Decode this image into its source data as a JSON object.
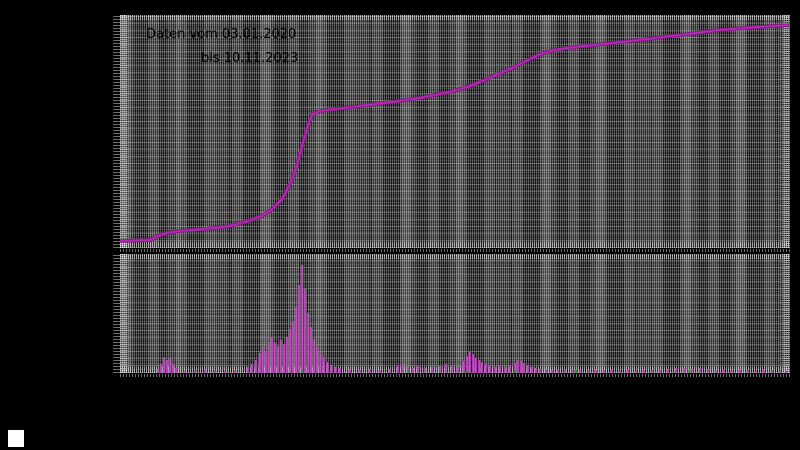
{
  "titles": {
    "line1": "Daten vom 03.01.2020",
    "line2": "bis 10.11.2023"
  },
  "colors": {
    "background": "#000000",
    "grid_gray": "#555555",
    "line_outer": "#8e158e",
    "line_inner": "#b32db3",
    "bar_fill": "#a82ca8",
    "bar_edge": "#c95fc9",
    "accent_green": "#3c8a3c",
    "title_text": "#000000",
    "legend_swatch": "#ffffff"
  },
  "chart_data": [
    {
      "type": "line",
      "title": "Daten vom 03.01.2020 bis 10.11.2023",
      "x_range": [
        "03.01.2020",
        "10.11.2023"
      ],
      "ylabel": "",
      "xlabel": "",
      "grid": true,
      "axis_tick_labels_visible": false,
      "points_normalized": [
        [
          0.0,
          0.03
        ],
        [
          0.045,
          0.034
        ],
        [
          0.057,
          0.052
        ],
        [
          0.069,
          0.064
        ],
        [
          0.09,
          0.073
        ],
        [
          0.127,
          0.082
        ],
        [
          0.164,
          0.094
        ],
        [
          0.191,
          0.116
        ],
        [
          0.212,
          0.137
        ],
        [
          0.227,
          0.167
        ],
        [
          0.242,
          0.21
        ],
        [
          0.254,
          0.275
        ],
        [
          0.263,
          0.343
        ],
        [
          0.272,
          0.438
        ],
        [
          0.281,
          0.532
        ],
        [
          0.288,
          0.575
        ],
        [
          0.299,
          0.588
        ],
        [
          0.336,
          0.601
        ],
        [
          0.381,
          0.618
        ],
        [
          0.418,
          0.631
        ],
        [
          0.455,
          0.648
        ],
        [
          0.493,
          0.67
        ],
        [
          0.522,
          0.695
        ],
        [
          0.552,
          0.73
        ],
        [
          0.582,
          0.768
        ],
        [
          0.612,
          0.811
        ],
        [
          0.631,
          0.837
        ],
        [
          0.649,
          0.85
        ],
        [
          0.679,
          0.863
        ],
        [
          0.724,
          0.876
        ],
        [
          0.776,
          0.893
        ],
        [
          0.836,
          0.914
        ],
        [
          0.896,
          0.936
        ],
        [
          0.955,
          0.949
        ],
        [
          1.0,
          0.957
        ]
      ]
    },
    {
      "type": "bar",
      "title": "",
      "grid": true,
      "axis_tick_labels_visible": false,
      "bars_normalized": [
        [
          0.057,
          0.034
        ],
        [
          0.061,
          0.076
        ],
        [
          0.066,
          0.134
        ],
        [
          0.07,
          0.109
        ],
        [
          0.075,
          0.126
        ],
        [
          0.079,
          0.076
        ],
        [
          0.084,
          0.042
        ],
        [
          0.097,
          0.017
        ],
        [
          0.112,
          0.017
        ],
        [
          0.127,
          0.025
        ],
        [
          0.142,
          0.017
        ],
        [
          0.157,
          0.017
        ],
        [
          0.172,
          0.017
        ],
        [
          0.191,
          0.05
        ],
        [
          0.197,
          0.076
        ],
        [
          0.203,
          0.109
        ],
        [
          0.209,
          0.168
        ],
        [
          0.213,
          0.218
        ],
        [
          0.218,
          0.185
        ],
        [
          0.222,
          0.252
        ],
        [
          0.227,
          0.303
        ],
        [
          0.231,
          0.252
        ],
        [
          0.236,
          0.227
        ],
        [
          0.24,
          0.277
        ],
        [
          0.245,
          0.244
        ],
        [
          0.249,
          0.303
        ],
        [
          0.254,
          0.37
        ],
        [
          0.258,
          0.437
        ],
        [
          0.263,
          0.555
        ],
        [
          0.267,
          0.739
        ],
        [
          0.272,
          0.908
        ],
        [
          0.276,
          0.706
        ],
        [
          0.281,
          0.504
        ],
        [
          0.285,
          0.387
        ],
        [
          0.29,
          0.286
        ],
        [
          0.294,
          0.218
        ],
        [
          0.299,
          0.168
        ],
        [
          0.304,
          0.126
        ],
        [
          0.31,
          0.092
        ],
        [
          0.316,
          0.067
        ],
        [
          0.322,
          0.05
        ],
        [
          0.328,
          0.042
        ],
        [
          0.343,
          0.025
        ],
        [
          0.358,
          0.025
        ],
        [
          0.373,
          0.034
        ],
        [
          0.388,
          0.025
        ],
        [
          0.403,
          0.034
        ],
        [
          0.415,
          0.059
        ],
        [
          0.422,
          0.076
        ],
        [
          0.43,
          0.05
        ],
        [
          0.437,
          0.042
        ],
        [
          0.445,
          0.059
        ],
        [
          0.455,
          0.042
        ],
        [
          0.466,
          0.05
        ],
        [
          0.478,
          0.059
        ],
        [
          0.487,
          0.076
        ],
        [
          0.496,
          0.059
        ],
        [
          0.504,
          0.05
        ],
        [
          0.513,
          0.101
        ],
        [
          0.518,
          0.143
        ],
        [
          0.522,
          0.185
        ],
        [
          0.527,
          0.16
        ],
        [
          0.531,
          0.126
        ],
        [
          0.536,
          0.109
        ],
        [
          0.54,
          0.092
        ],
        [
          0.546,
          0.076
        ],
        [
          0.552,
          0.059
        ],
        [
          0.56,
          0.05
        ],
        [
          0.567,
          0.059
        ],
        [
          0.575,
          0.05
        ],
        [
          0.582,
          0.059
        ],
        [
          0.59,
          0.084
        ],
        [
          0.594,
          0.109
        ],
        [
          0.599,
          0.101
        ],
        [
          0.603,
          0.084
        ],
        [
          0.609,
          0.067
        ],
        [
          0.615,
          0.05
        ],
        [
          0.621,
          0.042
        ],
        [
          0.627,
          0.034
        ],
        [
          0.636,
          0.025
        ],
        [
          0.645,
          0.025
        ],
        [
          0.654,
          0.025
        ],
        [
          0.664,
          0.025
        ],
        [
          0.675,
          0.025
        ],
        [
          0.687,
          0.025
        ],
        [
          0.699,
          0.025
        ],
        [
          0.71,
          0.025
        ],
        [
          0.722,
          0.017
        ],
        [
          0.734,
          0.025
        ],
        [
          0.746,
          0.017
        ],
        [
          0.758,
          0.025
        ],
        [
          0.77,
          0.017
        ],
        [
          0.782,
          0.025
        ],
        [
          0.794,
          0.017
        ],
        [
          0.806,
          0.025
        ],
        [
          0.818,
          0.034
        ],
        [
          0.83,
          0.042
        ],
        [
          0.842,
          0.042
        ],
        [
          0.854,
          0.034
        ],
        [
          0.866,
          0.042
        ],
        [
          0.878,
          0.034
        ],
        [
          0.89,
          0.025
        ],
        [
          0.901,
          0.025
        ],
        [
          0.913,
          0.017
        ],
        [
          0.925,
          0.025
        ],
        [
          0.937,
          0.017
        ],
        [
          0.949,
          0.017
        ],
        [
          0.961,
          0.025
        ],
        [
          0.973,
          0.017
        ],
        [
          0.985,
          0.017
        ],
        [
          0.994,
          0.017
        ]
      ],
      "green_accents_normalized": [
        0.272,
        0.43,
        0.518,
        0.59,
        0.68,
        0.85
      ]
    }
  ]
}
